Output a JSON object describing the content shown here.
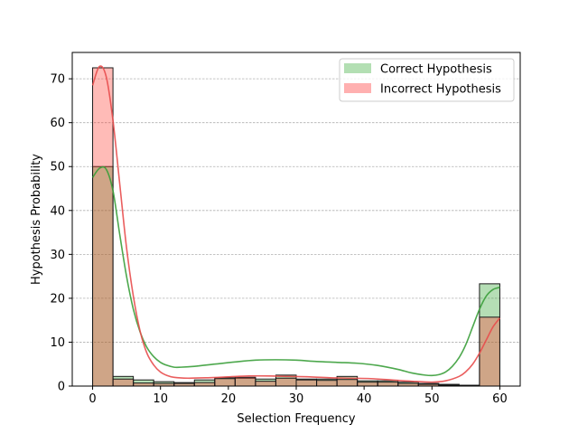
{
  "chart_data": {
    "type": "bar",
    "subtype": "overlaid histogram with KDE curves",
    "xlabel": "Selection Frequency",
    "ylabel": "Hypothesis Probability",
    "xlim": [
      -3.0,
      63.0
    ],
    "ylim": [
      0,
      76
    ],
    "xticks": [
      0,
      10,
      20,
      30,
      40,
      50,
      60
    ],
    "yticks": [
      0,
      10,
      20,
      30,
      40,
      50,
      60,
      70
    ],
    "grid": "horizontal dashed",
    "legend_position": "top-right",
    "bin_edges": [
      0,
      3,
      6,
      9,
      12,
      15,
      18,
      21,
      24,
      27,
      30,
      33,
      36,
      39,
      42,
      45,
      48,
      51,
      54,
      57,
      60
    ],
    "series": [
      {
        "name": "Correct Hypothesis",
        "color": "#2ca02c",
        "fill": "#9bd38f",
        "kde_color": "#3a9e3a",
        "values": [
          50.0,
          2.2,
          1.4,
          1.0,
          0.8,
          1.4,
          1.9,
          1.8,
          1.6,
          2.5,
          1.6,
          1.6,
          2.2,
          1.2,
          1.2,
          0.9,
          0.6,
          0.4,
          0.2,
          23.3
        ],
        "kde": [
          [
            0,
            47.5
          ],
          [
            1,
            49.6
          ],
          [
            2,
            49.4
          ],
          [
            3,
            44.5
          ],
          [
            4,
            34.5
          ],
          [
            5,
            25.0
          ],
          [
            6,
            17.5
          ],
          [
            7,
            12.3
          ],
          [
            8,
            8.8
          ],
          [
            9,
            6.7
          ],
          [
            10,
            5.4
          ],
          [
            11,
            4.7
          ],
          [
            12,
            4.3
          ],
          [
            13,
            4.3
          ],
          [
            15,
            4.5
          ],
          [
            18,
            5.0
          ],
          [
            21,
            5.5
          ],
          [
            24,
            5.9
          ],
          [
            27,
            6.0
          ],
          [
            30,
            5.9
          ],
          [
            33,
            5.6
          ],
          [
            36,
            5.4
          ],
          [
            39,
            5.2
          ],
          [
            42,
            4.7
          ],
          [
            45,
            3.8
          ],
          [
            47,
            3.0
          ],
          [
            49,
            2.5
          ],
          [
            50,
            2.4
          ],
          [
            51,
            2.6
          ],
          [
            52,
            3.2
          ],
          [
            53,
            4.5
          ],
          [
            54,
            6.5
          ],
          [
            55,
            9.5
          ],
          [
            56,
            13.5
          ],
          [
            57,
            17.5
          ],
          [
            58,
            20.5
          ],
          [
            59,
            22.0
          ],
          [
            60,
            22.5
          ]
        ]
      },
      {
        "name": "Incorrect Hypothesis",
        "color": "#d62728",
        "fill": "#ff9d9d",
        "kde_color": "#e84c4c",
        "values": [
          72.5,
          1.6,
          0.7,
          0.6,
          0.6,
          0.8,
          1.7,
          2.0,
          1.1,
          1.8,
          1.4,
          1.3,
          1.5,
          0.9,
          0.9,
          0.6,
          0.4,
          0.2,
          0.1,
          15.7
        ],
        "kde": [
          [
            0,
            68.5
          ],
          [
            1,
            72.8
          ],
          [
            2,
            70.5
          ],
          [
            3,
            60.5
          ],
          [
            4,
            46.0
          ],
          [
            5,
            31.5
          ],
          [
            6,
            20.5
          ],
          [
            7,
            12.5
          ],
          [
            8,
            7.5
          ],
          [
            9,
            4.8
          ],
          [
            10,
            3.2
          ],
          [
            11,
            2.4
          ],
          [
            12,
            2.0
          ],
          [
            14,
            1.8
          ],
          [
            17,
            1.9
          ],
          [
            20,
            2.1
          ],
          [
            23,
            2.3
          ],
          [
            26,
            2.3
          ],
          [
            29,
            2.2
          ],
          [
            32,
            2.1
          ],
          [
            35,
            1.9
          ],
          [
            38,
            1.8
          ],
          [
            41,
            1.7
          ],
          [
            44,
            1.4
          ],
          [
            47,
            1.1
          ],
          [
            50,
            0.9
          ],
          [
            52,
            1.2
          ],
          [
            54,
            2.2
          ],
          [
            55,
            3.3
          ],
          [
            56,
            5.0
          ],
          [
            57,
            7.5
          ],
          [
            58,
            10.5
          ],
          [
            59,
            13.5
          ],
          [
            60,
            15.5
          ]
        ]
      }
    ]
  }
}
